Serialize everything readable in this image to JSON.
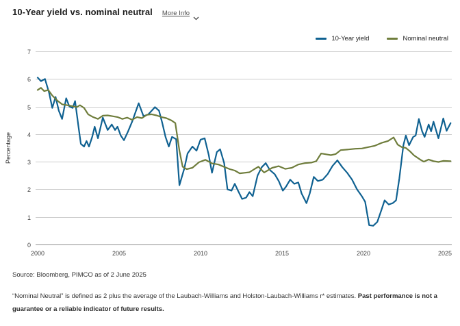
{
  "header": {
    "title": "10-Year yield vs. nominal neutral",
    "more_info_label": "More Info",
    "more_info_icon": "chevron-down-icon"
  },
  "legend": [
    {
      "label": "10-Year yield",
      "color": "#0f6191"
    },
    {
      "label": "Nominal neutral",
      "color": "#6f7d3c"
    }
  ],
  "source": "Source: Bloomberg, PIMCO as of 2 June 2025",
  "footnote": {
    "normal": "“Nominal Neutral” is defined as 2 plus the average of the Laubach-Williams and Holston-Laubach-Williams r* estimates. ",
    "bold": "Past performance is not a guarantee or a reliable indicator of future results."
  },
  "chart_data": {
    "type": "line",
    "title": "10-Year yield vs. nominal neutral",
    "xlabel": "",
    "ylabel": "Percentage",
    "ylim": [
      0,
      7
    ],
    "xlim": [
      2000,
      2025.45
    ],
    "yticks": [
      0,
      1,
      2,
      3,
      4,
      5,
      6,
      7
    ],
    "xticks": [
      2000,
      2005,
      2010,
      2015,
      2020,
      2025
    ],
    "grid": true,
    "legend_position": "top-right",
    "colors": {
      "gridline": "#cbcbcb",
      "axis_line": "#8c8c8c",
      "tick_text": "#444444"
    },
    "series": [
      {
        "name": "10-Year yield",
        "color": "#0f6191",
        "points": [
          [
            2000.0,
            6.05
          ],
          [
            2000.2,
            5.92
          ],
          [
            2000.45,
            6.0
          ],
          [
            2000.7,
            5.5
          ],
          [
            2000.9,
            4.95
          ],
          [
            2001.1,
            5.35
          ],
          [
            2001.3,
            4.85
          ],
          [
            2001.5,
            4.55
          ],
          [
            2001.75,
            5.3
          ],
          [
            2001.95,
            5.0
          ],
          [
            2002.15,
            4.95
          ],
          [
            2002.3,
            5.2
          ],
          [
            2002.5,
            4.3
          ],
          [
            2002.65,
            3.65
          ],
          [
            2002.85,
            3.55
          ],
          [
            2003.0,
            3.75
          ],
          [
            2003.15,
            3.55
          ],
          [
            2003.35,
            3.9
          ],
          [
            2003.5,
            4.27
          ],
          [
            2003.7,
            3.85
          ],
          [
            2004.0,
            4.6
          ],
          [
            2004.3,
            4.15
          ],
          [
            2004.55,
            4.35
          ],
          [
            2004.75,
            4.15
          ],
          [
            2004.9,
            4.27
          ],
          [
            2005.1,
            3.95
          ],
          [
            2005.3,
            3.78
          ],
          [
            2005.55,
            4.1
          ],
          [
            2005.8,
            4.45
          ],
          [
            2006.2,
            5.12
          ],
          [
            2006.5,
            4.65
          ],
          [
            2006.8,
            4.72
          ],
          [
            2007.2,
            4.98
          ],
          [
            2007.45,
            4.85
          ],
          [
            2007.65,
            4.4
          ],
          [
            2007.85,
            3.9
          ],
          [
            2008.05,
            3.55
          ],
          [
            2008.25,
            3.9
          ],
          [
            2008.5,
            3.82
          ],
          [
            2008.7,
            2.15
          ],
          [
            2009.0,
            2.75
          ],
          [
            2009.2,
            3.3
          ],
          [
            2009.5,
            3.55
          ],
          [
            2009.75,
            3.4
          ],
          [
            2010.0,
            3.8
          ],
          [
            2010.25,
            3.85
          ],
          [
            2010.5,
            3.25
          ],
          [
            2010.7,
            2.6
          ],
          [
            2011.0,
            3.35
          ],
          [
            2011.2,
            3.45
          ],
          [
            2011.45,
            2.95
          ],
          [
            2011.65,
            2.0
          ],
          [
            2011.9,
            1.95
          ],
          [
            2012.1,
            2.2
          ],
          [
            2012.3,
            1.95
          ],
          [
            2012.55,
            1.65
          ],
          [
            2012.8,
            1.7
          ],
          [
            2013.0,
            1.9
          ],
          [
            2013.2,
            1.75
          ],
          [
            2013.5,
            2.5
          ],
          [
            2013.75,
            2.8
          ],
          [
            2014.0,
            2.95
          ],
          [
            2014.25,
            2.7
          ],
          [
            2014.55,
            2.55
          ],
          [
            2014.8,
            2.3
          ],
          [
            2015.05,
            1.95
          ],
          [
            2015.25,
            2.1
          ],
          [
            2015.5,
            2.35
          ],
          [
            2015.75,
            2.2
          ],
          [
            2016.0,
            2.25
          ],
          [
            2016.2,
            1.85
          ],
          [
            2016.5,
            1.5
          ],
          [
            2016.7,
            1.85
          ],
          [
            2016.95,
            2.45
          ],
          [
            2017.2,
            2.3
          ],
          [
            2017.5,
            2.35
          ],
          [
            2017.8,
            2.55
          ],
          [
            2018.1,
            2.85
          ],
          [
            2018.4,
            3.05
          ],
          [
            2018.7,
            2.8
          ],
          [
            2019.0,
            2.6
          ],
          [
            2019.3,
            2.35
          ],
          [
            2019.6,
            2.0
          ],
          [
            2019.9,
            1.75
          ],
          [
            2020.1,
            1.55
          ],
          [
            2020.35,
            0.7
          ],
          [
            2020.6,
            0.68
          ],
          [
            2020.85,
            0.82
          ],
          [
            2021.1,
            1.25
          ],
          [
            2021.3,
            1.6
          ],
          [
            2021.55,
            1.45
          ],
          [
            2021.8,
            1.5
          ],
          [
            2022.0,
            1.6
          ],
          [
            2022.2,
            2.4
          ],
          [
            2022.45,
            3.6
          ],
          [
            2022.6,
            3.95
          ],
          [
            2022.8,
            3.6
          ],
          [
            2023.05,
            3.9
          ],
          [
            2023.2,
            3.95
          ],
          [
            2023.4,
            4.55
          ],
          [
            2023.6,
            4.1
          ],
          [
            2023.75,
            3.9
          ],
          [
            2024.0,
            4.35
          ],
          [
            2024.15,
            4.1
          ],
          [
            2024.3,
            4.45
          ],
          [
            2024.6,
            3.85
          ],
          [
            2024.9,
            4.57
          ],
          [
            2025.1,
            4.12
          ],
          [
            2025.35,
            4.4
          ]
        ]
      },
      {
        "name": "Nominal neutral",
        "color": "#6f7d3c",
        "points": [
          [
            2000.0,
            5.6
          ],
          [
            2000.2,
            5.68
          ],
          [
            2000.4,
            5.56
          ],
          [
            2000.65,
            5.6
          ],
          [
            2000.9,
            5.4
          ],
          [
            2001.2,
            5.22
          ],
          [
            2001.5,
            5.08
          ],
          [
            2001.8,
            5.05
          ],
          [
            2002.1,
            5.02
          ],
          [
            2002.4,
            4.98
          ],
          [
            2002.6,
            5.05
          ],
          [
            2002.85,
            4.95
          ],
          [
            2003.1,
            4.72
          ],
          [
            2003.4,
            4.62
          ],
          [
            2003.7,
            4.55
          ],
          [
            2004.0,
            4.67
          ],
          [
            2004.3,
            4.68
          ],
          [
            2004.6,
            4.65
          ],
          [
            2004.9,
            4.62
          ],
          [
            2005.2,
            4.55
          ],
          [
            2005.5,
            4.6
          ],
          [
            2005.8,
            4.52
          ],
          [
            2006.1,
            4.62
          ],
          [
            2006.4,
            4.58
          ],
          [
            2006.7,
            4.7
          ],
          [
            2007.0,
            4.72
          ],
          [
            2007.3,
            4.68
          ],
          [
            2007.6,
            4.62
          ],
          [
            2007.9,
            4.58
          ],
          [
            2008.2,
            4.5
          ],
          [
            2008.45,
            4.4
          ],
          [
            2008.7,
            3.4
          ],
          [
            2008.9,
            2.82
          ],
          [
            2009.15,
            2.73
          ],
          [
            2009.5,
            2.78
          ],
          [
            2009.9,
            2.98
          ],
          [
            2010.3,
            3.07
          ],
          [
            2010.7,
            2.94
          ],
          [
            2011.1,
            2.9
          ],
          [
            2011.5,
            2.8
          ],
          [
            2011.8,
            2.73
          ],
          [
            2012.1,
            2.68
          ],
          [
            2012.4,
            2.58
          ],
          [
            2012.7,
            2.6
          ],
          [
            2013.0,
            2.62
          ],
          [
            2013.3,
            2.73
          ],
          [
            2013.55,
            2.82
          ],
          [
            2013.9,
            2.61
          ],
          [
            2014.4,
            2.78
          ],
          [
            2014.8,
            2.84
          ],
          [
            2015.2,
            2.74
          ],
          [
            2015.6,
            2.78
          ],
          [
            2016.0,
            2.9
          ],
          [
            2016.4,
            2.95
          ],
          [
            2016.8,
            2.97
          ],
          [
            2017.1,
            3.02
          ],
          [
            2017.4,
            3.3
          ],
          [
            2017.7,
            3.27
          ],
          [
            2018.0,
            3.24
          ],
          [
            2018.3,
            3.28
          ],
          [
            2018.6,
            3.42
          ],
          [
            2019.0,
            3.44
          ],
          [
            2019.5,
            3.47
          ],
          [
            2019.9,
            3.48
          ],
          [
            2020.3,
            3.53
          ],
          [
            2020.7,
            3.58
          ],
          [
            2021.1,
            3.68
          ],
          [
            2021.5,
            3.75
          ],
          [
            2021.85,
            3.88
          ],
          [
            2022.1,
            3.62
          ],
          [
            2022.35,
            3.53
          ],
          [
            2022.6,
            3.5
          ],
          [
            2022.85,
            3.38
          ],
          [
            2023.1,
            3.23
          ],
          [
            2023.5,
            3.07
          ],
          [
            2023.7,
            3.0
          ],
          [
            2024.0,
            3.08
          ],
          [
            2024.3,
            3.02
          ],
          [
            2024.6,
            2.99
          ],
          [
            2024.9,
            3.03
          ],
          [
            2025.35,
            3.02
          ]
        ]
      }
    ]
  }
}
